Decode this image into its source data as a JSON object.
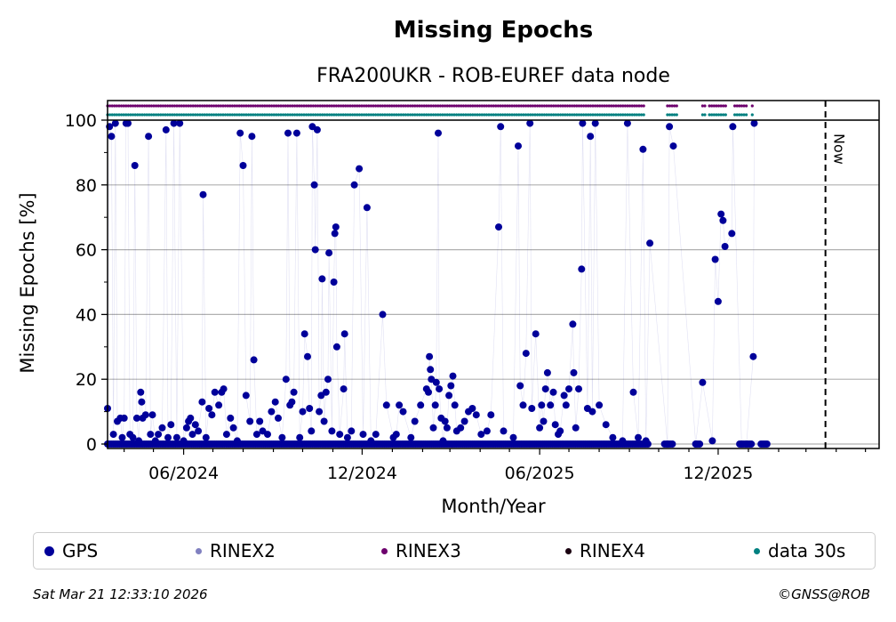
{
  "chart_data": {
    "type": "scatter",
    "title": "Missing Epochs",
    "subtitle": "FRA200UKR - ROB-EUREF data node",
    "xlabel": "Month/Year",
    "ylabel": "Missing Epochs [%]",
    "x_ticks": [
      "06/2024",
      "12/2024",
      "06/2025",
      "12/2025"
    ],
    "y_ticks": [
      "0",
      "20",
      "40",
      "60",
      "80",
      "100"
    ],
    "ylim": [
      0,
      100
    ],
    "xlim": [
      "2024-03-15",
      "2026-05-15"
    ],
    "grid": true,
    "now_label": "Now",
    "now_date": "2026-03-21",
    "legend": [
      {
        "label": "GPS",
        "color": "#00009a"
      },
      {
        "label": "RINEX2",
        "color": "#8080c0"
      },
      {
        "label": "RINEX3",
        "color": "#6d006d"
      },
      {
        "label": "RINEX4",
        "color": "#1a0010"
      },
      {
        "label": "data 30s",
        "color": "#008080"
      }
    ],
    "availability": [
      {
        "name": "RINEX3",
        "color": "#6d006d",
        "periods": [
          [
            "2024-03-15",
            "2025-09-18"
          ],
          [
            "2025-10-10",
            "2025-10-20"
          ],
          [
            "2025-11-15",
            "2025-11-18"
          ],
          [
            "2025-11-22",
            "2025-12-10"
          ],
          [
            "2025-12-18",
            "2025-12-30"
          ],
          [
            "2026-01-05",
            "2026-01-07"
          ]
        ]
      },
      {
        "name": "data 30s",
        "color": "#008080",
        "periods": [
          [
            "2024-03-15",
            "2025-09-18"
          ],
          [
            "2025-10-10",
            "2025-10-20"
          ],
          [
            "2025-11-15",
            "2025-11-18"
          ],
          [
            "2025-11-22",
            "2025-12-10"
          ],
          [
            "2025-12-18",
            "2025-12-30"
          ],
          [
            "2026-01-05",
            "2026-01-07"
          ]
        ]
      }
    ],
    "series": [
      {
        "name": "GPS",
        "color": "#00009a",
        "points": [
          [
            "2024-03-15",
            11
          ],
          [
            "2024-03-17",
            98
          ],
          [
            "2024-03-19",
            95
          ],
          [
            "2024-03-21",
            3
          ],
          [
            "2024-03-23",
            99
          ],
          [
            "2024-03-25",
            7
          ],
          [
            "2024-03-28",
            8
          ],
          [
            "2024-03-30",
            2
          ],
          [
            "2024-04-01",
            8
          ],
          [
            "2024-04-03",
            99
          ],
          [
            "2024-04-05",
            99
          ],
          [
            "2024-04-07",
            3
          ],
          [
            "2024-04-10",
            2
          ],
          [
            "2024-04-12",
            86
          ],
          [
            "2024-04-14",
            8
          ],
          [
            "2024-04-16",
            1
          ],
          [
            "2024-04-18",
            16
          ],
          [
            "2024-04-19",
            13
          ],
          [
            "2024-04-20",
            8
          ],
          [
            "2024-04-23",
            9
          ],
          [
            "2024-04-26",
            95
          ],
          [
            "2024-04-28",
            3
          ],
          [
            "2024-04-30",
            9
          ],
          [
            "2024-05-03",
            1
          ],
          [
            "2024-05-06",
            3
          ],
          [
            "2024-05-10",
            5
          ],
          [
            "2024-05-14",
            97
          ],
          [
            "2024-05-16",
            2
          ],
          [
            "2024-05-19",
            6
          ],
          [
            "2024-05-22",
            99
          ],
          [
            "2024-05-25",
            2
          ],
          [
            "2024-05-28",
            99
          ],
          [
            "2024-06-01",
            1
          ],
          [
            "2024-06-04",
            5
          ],
          [
            "2024-06-06",
            7
          ],
          [
            "2024-06-08",
            8
          ],
          [
            "2024-06-10",
            3
          ],
          [
            "2024-06-13",
            6
          ],
          [
            "2024-06-16",
            4
          ],
          [
            "2024-06-20",
            13
          ],
          [
            "2024-06-21",
            77
          ],
          [
            "2024-06-24",
            2
          ],
          [
            "2024-06-27",
            11
          ],
          [
            "2024-06-30",
            9
          ],
          [
            "2024-07-03",
            16
          ],
          [
            "2024-07-07",
            12
          ],
          [
            "2024-07-10",
            16
          ],
          [
            "2024-07-12",
            17
          ],
          [
            "2024-07-15",
            3
          ],
          [
            "2024-07-19",
            8
          ],
          [
            "2024-07-22",
            5
          ],
          [
            "2024-07-26",
            1
          ],
          [
            "2024-07-29",
            96
          ],
          [
            "2024-08-01",
            86
          ],
          [
            "2024-08-04",
            15
          ],
          [
            "2024-08-08",
            7
          ],
          [
            "2024-08-10",
            95
          ],
          [
            "2024-08-12",
            26
          ],
          [
            "2024-08-15",
            3
          ],
          [
            "2024-08-18",
            7
          ],
          [
            "2024-08-21",
            4
          ],
          [
            "2024-08-26",
            3
          ],
          [
            "2024-08-30",
            10
          ],
          [
            "2024-09-03",
            13
          ],
          [
            "2024-09-06",
            8
          ],
          [
            "2024-09-10",
            2
          ],
          [
            "2024-09-14",
            20
          ],
          [
            "2024-09-16",
            96
          ],
          [
            "2024-09-18",
            12
          ],
          [
            "2024-09-20",
            13
          ],
          [
            "2024-09-22",
            16
          ],
          [
            "2024-09-25",
            96
          ],
          [
            "2024-09-28",
            2
          ],
          [
            "2024-10-01",
            10
          ],
          [
            "2024-10-03",
            34
          ],
          [
            "2024-10-06",
            27
          ],
          [
            "2024-10-08",
            11
          ],
          [
            "2024-10-10",
            4
          ],
          [
            "2024-10-11",
            98
          ],
          [
            "2024-10-13",
            80
          ],
          [
            "2024-10-14",
            60
          ],
          [
            "2024-10-16",
            97
          ],
          [
            "2024-10-18",
            10
          ],
          [
            "2024-10-20",
            15
          ],
          [
            "2024-10-21",
            51
          ],
          [
            "2024-10-23",
            7
          ],
          [
            "2024-10-25",
            16
          ],
          [
            "2024-10-27",
            20
          ],
          [
            "2024-10-28",
            59
          ],
          [
            "2024-10-31",
            4
          ],
          [
            "2024-11-02",
            50
          ],
          [
            "2024-11-03",
            65
          ],
          [
            "2024-11-04",
            67
          ],
          [
            "2024-11-05",
            30
          ],
          [
            "2024-11-08",
            3
          ],
          [
            "2024-11-12",
            17
          ],
          [
            "2024-11-13",
            34
          ],
          [
            "2024-11-16",
            2
          ],
          [
            "2024-11-20",
            4
          ],
          [
            "2024-11-23",
            80
          ],
          [
            "2024-11-28",
            85
          ],
          [
            "2024-12-02",
            3
          ],
          [
            "2024-12-06",
            73
          ],
          [
            "2024-12-10",
            1
          ],
          [
            "2024-12-15",
            3
          ],
          [
            "2024-12-22",
            40
          ],
          [
            "2024-12-26",
            12
          ],
          [
            "2025-01-02",
            2
          ],
          [
            "2025-01-05",
            3
          ],
          [
            "2025-01-08",
            12
          ],
          [
            "2025-01-12",
            10
          ],
          [
            "2025-01-20",
            2
          ],
          [
            "2025-01-24",
            7
          ],
          [
            "2025-01-30",
            12
          ],
          [
            "2025-02-05",
            17
          ],
          [
            "2025-02-07",
            16
          ],
          [
            "2025-02-08",
            27
          ],
          [
            "2025-02-09",
            23
          ],
          [
            "2025-02-10",
            20
          ],
          [
            "2025-02-12",
            5
          ],
          [
            "2025-02-14",
            12
          ],
          [
            "2025-02-15",
            19
          ],
          [
            "2025-02-17",
            96
          ],
          [
            "2025-02-18",
            17
          ],
          [
            "2025-02-20",
            8
          ],
          [
            "2025-02-22",
            1
          ],
          [
            "2025-02-24",
            7
          ],
          [
            "2025-02-26",
            5
          ],
          [
            "2025-02-28",
            15
          ],
          [
            "2025-03-02",
            18
          ],
          [
            "2025-03-04",
            21
          ],
          [
            "2025-03-06",
            12
          ],
          [
            "2025-03-08",
            4
          ],
          [
            "2025-03-12",
            5
          ],
          [
            "2025-03-16",
            7
          ],
          [
            "2025-03-20",
            10
          ],
          [
            "2025-03-24",
            11
          ],
          [
            "2025-03-28",
            9
          ],
          [
            "2025-04-02",
            3
          ],
          [
            "2025-04-08",
            4
          ],
          [
            "2025-04-12",
            9
          ],
          [
            "2025-04-20",
            67
          ],
          [
            "2025-04-22",
            98
          ],
          [
            "2025-04-25",
            4
          ],
          [
            "2025-05-05",
            2
          ],
          [
            "2025-05-10",
            92
          ],
          [
            "2025-05-12",
            18
          ],
          [
            "2025-05-15",
            12
          ],
          [
            "2025-05-18",
            28
          ],
          [
            "2025-05-22",
            99
          ],
          [
            "2025-05-24",
            11
          ],
          [
            "2025-05-28",
            34
          ],
          [
            "2025-06-01",
            5
          ],
          [
            "2025-06-03",
            12
          ],
          [
            "2025-06-05",
            7
          ],
          [
            "2025-06-07",
            17
          ],
          [
            "2025-06-09",
            22
          ],
          [
            "2025-06-12",
            12
          ],
          [
            "2025-06-15",
            16
          ],
          [
            "2025-06-17",
            6
          ],
          [
            "2025-06-20",
            3
          ],
          [
            "2025-06-22",
            4
          ],
          [
            "2025-06-26",
            15
          ],
          [
            "2025-06-28",
            12
          ],
          [
            "2025-07-01",
            17
          ],
          [
            "2025-07-05",
            37
          ],
          [
            "2025-07-06",
            22
          ],
          [
            "2025-07-08",
            5
          ],
          [
            "2025-07-11",
            17
          ],
          [
            "2025-07-14",
            54
          ],
          [
            "2025-07-15",
            99
          ],
          [
            "2025-07-20",
            11
          ],
          [
            "2025-07-23",
            95
          ],
          [
            "2025-07-25",
            10
          ],
          [
            "2025-07-28",
            99
          ],
          [
            "2025-08-01",
            12
          ],
          [
            "2025-08-08",
            6
          ],
          [
            "2025-08-15",
            2
          ],
          [
            "2025-08-25",
            1
          ],
          [
            "2025-08-30",
            99
          ],
          [
            "2025-09-05",
            16
          ],
          [
            "2025-09-10",
            2
          ],
          [
            "2025-09-15",
            91
          ],
          [
            "2025-09-18",
            1
          ],
          [
            "2025-09-22",
            62
          ],
          [
            "2025-10-10",
            0
          ],
          [
            "2025-10-12",
            98
          ],
          [
            "2025-10-16",
            92
          ],
          [
            "2025-11-08",
            0
          ],
          [
            "2025-11-15",
            19
          ],
          [
            "2025-11-25",
            1
          ],
          [
            "2025-11-28",
            57
          ],
          [
            "2025-12-01",
            44
          ],
          [
            "2025-12-04",
            71
          ],
          [
            "2025-12-06",
            69
          ],
          [
            "2025-12-08",
            61
          ],
          [
            "2025-12-15",
            65
          ],
          [
            "2025-12-16",
            98
          ],
          [
            "2025-12-25",
            0
          ],
          [
            "2025-12-30",
            0
          ],
          [
            "2026-01-06",
            27
          ],
          [
            "2026-01-07",
            99
          ]
        ]
      }
    ]
  },
  "legend_texts": [
    "GPS",
    "RINEX2",
    "RINEX3",
    "RINEX4",
    "data 30s"
  ],
  "footer": {
    "timestamp": "Sat Mar 21 12:33:10 2026",
    "copyright": "©GNSS@ROB"
  }
}
